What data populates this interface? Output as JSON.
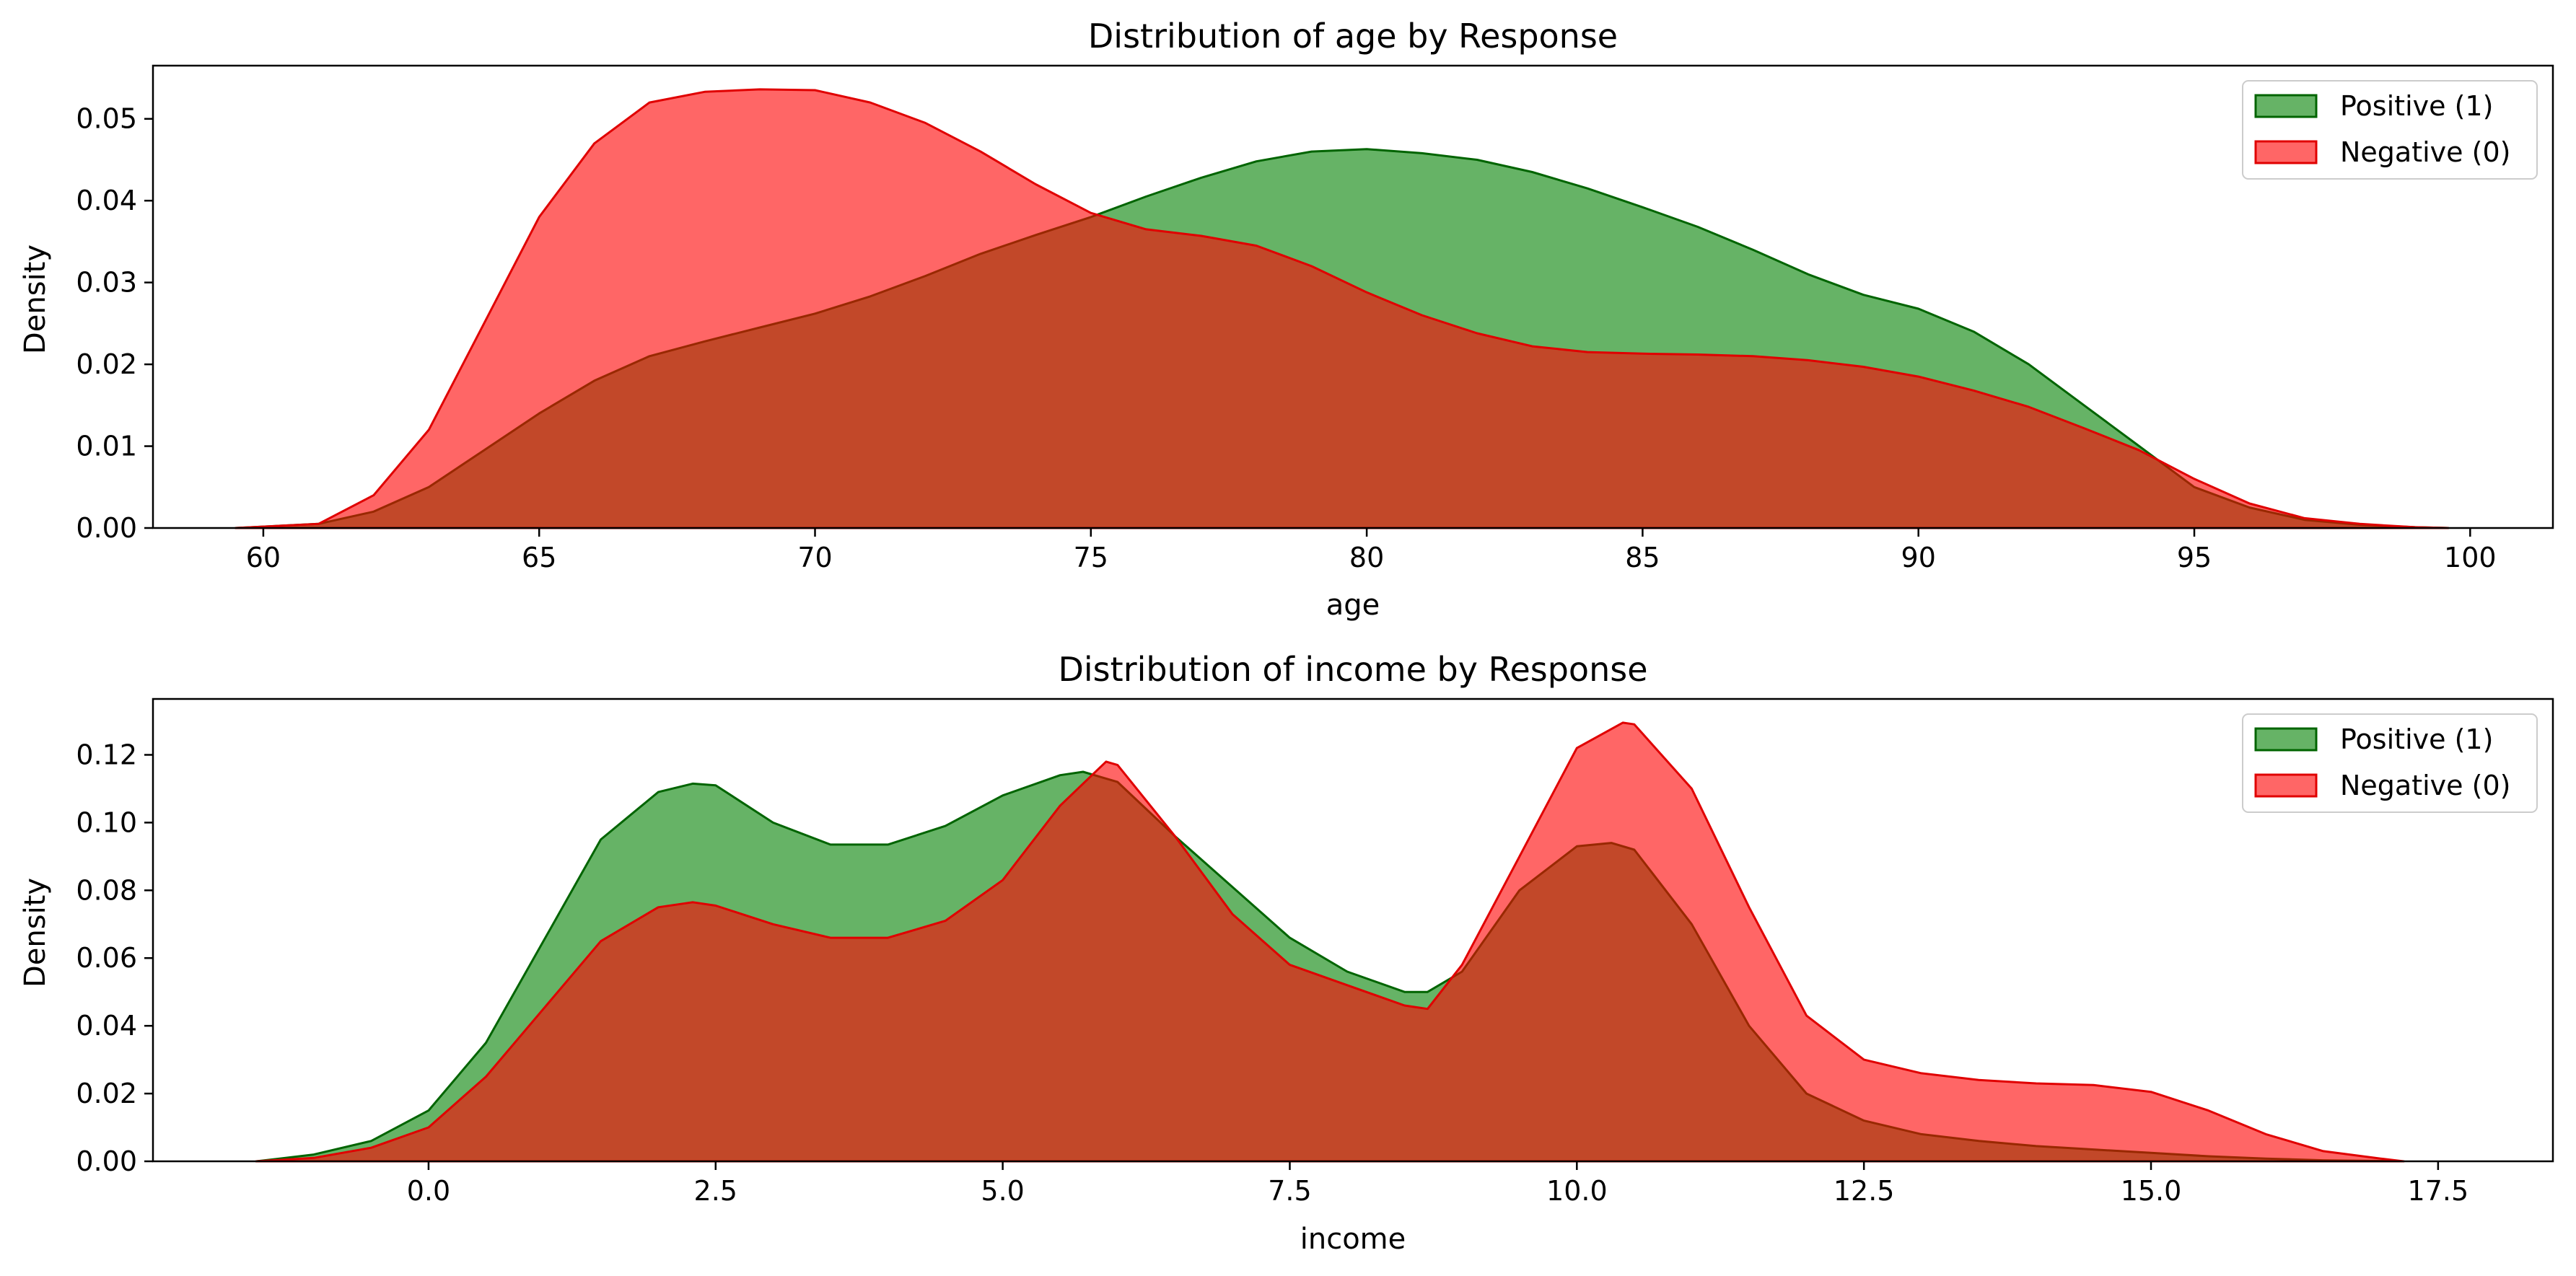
{
  "colors": {
    "positive_fill": "#008000",
    "positive_line": "#006400",
    "negative_fill": "#ff0000",
    "negative_line": "#e00000"
  },
  "chart_data": [
    {
      "type": "area",
      "title": "Distribution of age by Response",
      "xlabel": "age",
      "ylabel": "Density",
      "xlim": [
        58.0,
        101.5
      ],
      "ylim": [
        0,
        0.0565
      ],
      "xticks": [
        60,
        65,
        70,
        75,
        80,
        85,
        90,
        95,
        100
      ],
      "yticks": [
        0.0,
        0.01,
        0.02,
        0.03,
        0.04,
        0.05
      ],
      "ytick_decimals": 2,
      "legend": "top-right",
      "series": [
        {
          "name": "Positive (1)",
          "color": "green",
          "x": [
            59.5,
            61,
            62,
            63,
            64,
            65,
            66,
            67,
            68,
            69,
            70,
            71,
            72,
            73,
            74,
            75,
            76,
            77,
            78,
            79,
            80,
            81,
            82,
            83,
            84,
            85,
            86,
            87,
            88,
            89,
            90,
            91,
            92,
            93,
            94,
            95,
            96,
            97,
            98,
            99,
            99.6
          ],
          "y": [
            0.0,
            0.0005,
            0.002,
            0.005,
            0.0095,
            0.014,
            0.018,
            0.021,
            0.0228,
            0.0245,
            0.0262,
            0.0283,
            0.0308,
            0.0335,
            0.0358,
            0.038,
            0.0405,
            0.0428,
            0.0448,
            0.046,
            0.0463,
            0.0458,
            0.045,
            0.0435,
            0.0415,
            0.0392,
            0.0368,
            0.034,
            0.031,
            0.0285,
            0.0268,
            0.024,
            0.02,
            0.015,
            0.01,
            0.005,
            0.0025,
            0.001,
            0.0004,
            0.0001,
            0.0
          ]
        },
        {
          "name": "Negative (0)",
          "color": "red",
          "x": [
            59.5,
            61,
            62,
            63,
            64,
            65,
            66,
            67,
            68,
            69,
            70,
            71,
            72,
            73,
            74,
            75,
            76,
            77,
            78,
            79,
            80,
            81,
            82,
            83,
            84,
            85,
            86,
            87,
            88,
            89,
            90,
            91,
            92,
            93,
            94,
            95,
            96,
            97,
            98,
            99,
            99.6
          ],
          "y": [
            0.0,
            0.0005,
            0.004,
            0.012,
            0.025,
            0.038,
            0.047,
            0.052,
            0.0533,
            0.0536,
            0.0535,
            0.052,
            0.0495,
            0.046,
            0.042,
            0.0385,
            0.0365,
            0.0357,
            0.0345,
            0.032,
            0.0288,
            0.026,
            0.0238,
            0.0222,
            0.0215,
            0.0213,
            0.0212,
            0.021,
            0.0205,
            0.0197,
            0.0185,
            0.0168,
            0.0148,
            0.0122,
            0.0095,
            0.006,
            0.003,
            0.0012,
            0.0005,
            0.0001,
            0.0
          ]
        }
      ]
    },
    {
      "type": "area",
      "title": "Distribution of income by Response",
      "xlabel": "income",
      "ylabel": "Density",
      "xlim": [
        -2.4,
        18.5
      ],
      "ylim": [
        0,
        0.1365
      ],
      "xticks": [
        0.0,
        2.5,
        5.0,
        7.5,
        10.0,
        12.5,
        15.0,
        17.5
      ],
      "xtick_decimals": 1,
      "yticks": [
        0.0,
        0.02,
        0.04,
        0.06,
        0.08,
        0.1,
        0.12
      ],
      "ytick_decimals": 2,
      "legend": "top-right",
      "series": [
        {
          "name": "Positive (1)",
          "color": "green",
          "x": [
            -1.5,
            -1.0,
            -0.5,
            0.0,
            0.5,
            1.0,
            1.5,
            2.0,
            2.3,
            2.5,
            3.0,
            3.5,
            4.0,
            4.5,
            5.0,
            5.5,
            5.7,
            6.0,
            6.5,
            7.0,
            7.5,
            8.0,
            8.5,
            8.7,
            9.0,
            9.5,
            10.0,
            10.3,
            10.5,
            11.0,
            11.5,
            12.0,
            12.5,
            13.0,
            13.5,
            14.0,
            14.5,
            15.0,
            15.5,
            16.0,
            16.5,
            17.0,
            17.2
          ],
          "y": [
            0.0,
            0.002,
            0.006,
            0.015,
            0.035,
            0.065,
            0.095,
            0.109,
            0.1115,
            0.111,
            0.1,
            0.0935,
            0.0935,
            0.099,
            0.108,
            0.114,
            0.115,
            0.112,
            0.096,
            0.081,
            0.066,
            0.056,
            0.05,
            0.05,
            0.056,
            0.08,
            0.093,
            0.094,
            0.092,
            0.07,
            0.04,
            0.02,
            0.012,
            0.008,
            0.006,
            0.0045,
            0.0035,
            0.0025,
            0.0015,
            0.0008,
            0.0003,
            0.0001,
            0.0
          ]
        },
        {
          "name": "Negative (0)",
          "color": "red",
          "x": [
            -1.5,
            -1.0,
            -0.5,
            0.0,
            0.5,
            1.0,
            1.5,
            2.0,
            2.3,
            2.5,
            3.0,
            3.5,
            4.0,
            4.5,
            5.0,
            5.5,
            5.9,
            6.0,
            6.5,
            7.0,
            7.5,
            8.0,
            8.5,
            8.7,
            9.0,
            9.5,
            10.0,
            10.4,
            10.5,
            11.0,
            11.5,
            12.0,
            12.5,
            13.0,
            13.5,
            14.0,
            14.5,
            15.0,
            15.5,
            16.0,
            16.5,
            17.0,
            17.2
          ],
          "y": [
            0.0,
            0.001,
            0.004,
            0.01,
            0.025,
            0.045,
            0.065,
            0.075,
            0.0765,
            0.0755,
            0.07,
            0.066,
            0.066,
            0.071,
            0.083,
            0.105,
            0.118,
            0.117,
            0.096,
            0.073,
            0.058,
            0.052,
            0.046,
            0.045,
            0.058,
            0.09,
            0.122,
            0.1295,
            0.129,
            0.11,
            0.075,
            0.043,
            0.03,
            0.026,
            0.024,
            0.023,
            0.0225,
            0.0205,
            0.015,
            0.008,
            0.003,
            0.0008,
            0.0
          ]
        }
      ]
    }
  ]
}
